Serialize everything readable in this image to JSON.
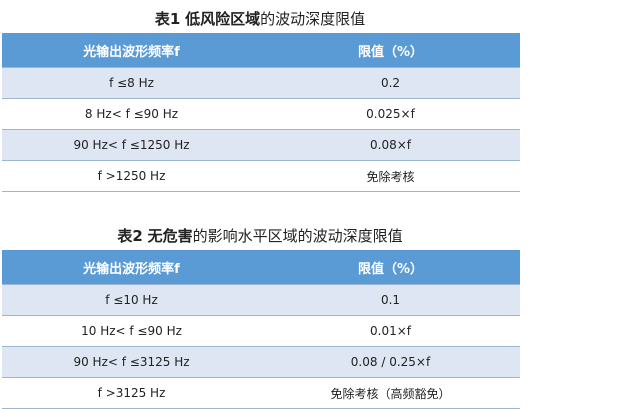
{
  "table1": {
    "title_prefix": "表1",
    "title_bold": "低风险区域",
    "title_rest": "的波动深度限值",
    "headers": [
      "光输出波形频率f",
      "限值（%）"
    ],
    "rows": [
      [
        "f ≤8 Hz",
        "0.2"
      ],
      [
        "8 Hz< f ≤90 Hz",
        "0.025×f"
      ],
      [
        "90 Hz< f ≤1250 Hz",
        "0.08×f"
      ],
      [
        "f >1250 Hz",
        "免除考核"
      ]
    ]
  },
  "table2": {
    "title_prefix": "表2",
    "title_bold": "无危害",
    "title_rest": "的影响水平区域的波动深度限值",
    "headers": [
      "光输出波形频率f",
      "限值（%）"
    ],
    "rows": [
      [
        "f ≤10 Hz",
        "0.1"
      ],
      [
        "10 Hz< f ≤90 Hz",
        "0.01×f"
      ],
      [
        "90 Hz< f ≤3125 Hz",
        "0.08 / 0.25×f"
      ],
      [
        "f >3125 Hz",
        "免除考核（高频豁免）"
      ]
    ]
  },
  "colors": {
    "header": "#5b9bd5",
    "band": "#dde6f2"
  }
}
